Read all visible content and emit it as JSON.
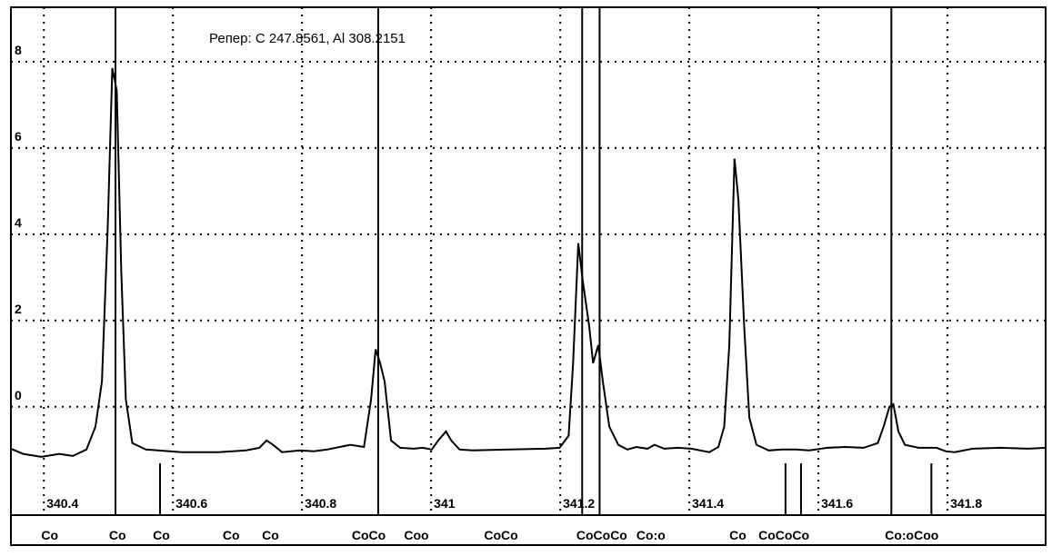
{
  "chart_data": {
    "type": "line",
    "annotation": "Репер: C  247.8561, Al  308.2151",
    "xlim": [
      340.349,
      341.952
    ],
    "ylim": [
      -2.51,
      9.26
    ],
    "xticks": [
      340.4,
      340.6,
      340.8,
      341,
      341.2,
      341.4,
      341.6,
      341.8
    ],
    "yticks": [
      0,
      2,
      4,
      6,
      8
    ],
    "grid": true,
    "x": [
      340.349,
      340.368,
      340.396,
      340.424,
      340.445,
      340.466,
      340.48,
      340.49,
      340.499,
      340.506,
      340.513,
      340.52,
      340.527,
      340.537,
      340.558,
      340.614,
      340.67,
      340.713,
      340.734,
      340.745,
      340.755,
      340.769,
      340.797,
      340.818,
      340.839,
      340.875,
      340.896,
      340.907,
      340.914,
      340.921,
      340.928,
      340.938,
      340.952,
      340.973,
      340.987,
      341.001,
      341.011,
      341.023,
      341.031,
      341.044,
      341.065,
      341.121,
      341.177,
      341.199,
      341.213,
      341.22,
      341.228,
      341.235,
      341.245,
      341.251,
      341.259,
      341.266,
      341.276,
      341.29,
      341.304,
      341.318,
      341.335,
      341.346,
      341.361,
      341.382,
      341.403,
      341.431,
      341.445,
      341.454,
      341.462,
      341.47,
      341.476,
      341.485,
      341.493,
      341.504,
      341.523,
      341.544,
      341.565,
      341.586,
      341.614,
      341.642,
      341.67,
      341.692,
      341.701,
      341.71,
      341.716,
      341.724,
      341.734,
      341.755,
      341.783,
      341.797,
      341.811,
      341.839,
      341.882,
      341.924,
      341.952
    ],
    "series": [
      {
        "color": "#000000",
        "values": [
          -0.97,
          -1.09,
          -1.16,
          -1.09,
          -1.14,
          -0.99,
          -0.46,
          0.59,
          4.17,
          7.85,
          7.33,
          3.12,
          0.17,
          -0.84,
          -0.99,
          -1.05,
          -1.05,
          -1.01,
          -0.95,
          -0.78,
          -0.88,
          -1.05,
          -1.01,
          -1.03,
          -0.99,
          -0.88,
          -0.93,
          0.17,
          1.33,
          1.01,
          0.59,
          -0.78,
          -0.95,
          -0.97,
          -0.95,
          -0.99,
          -0.78,
          -0.57,
          -0.78,
          -0.99,
          -1.01,
          -0.99,
          -0.97,
          -0.95,
          -0.67,
          1.01,
          3.79,
          2.91,
          1.85,
          1.01,
          1.43,
          0.59,
          -0.46,
          -0.88,
          -0.99,
          -0.93,
          -0.97,
          -0.88,
          -0.97,
          -0.95,
          -0.97,
          -1.05,
          -0.93,
          -0.46,
          1.43,
          5.75,
          4.8,
          1.85,
          -0.25,
          -0.88,
          -1.01,
          -0.99,
          -0.99,
          -1.01,
          -0.95,
          -0.93,
          -0.95,
          -0.84,
          -0.46,
          0,
          0.06,
          -0.57,
          -0.88,
          -0.95,
          -0.95,
          -1.03,
          -1.05,
          -0.97,
          -0.95,
          -0.97,
          -0.95
        ]
      }
    ],
    "reference_lines": [
      340.511,
      340.918,
      341.234,
      341.261,
      341.713
    ],
    "markers": [
      340.58,
      341.549,
      341.573,
      341.775
    ],
    "element_labels": [
      {
        "x": 340.396,
        "label": "Co"
      },
      {
        "x": 340.501,
        "label": "Co"
      },
      {
        "x": 340.569,
        "label": "Co"
      },
      {
        "x": 340.677,
        "label": "Co"
      },
      {
        "x": 340.738,
        "label": "Co"
      },
      {
        "x": 340.877,
        "label": "CoCo"
      },
      {
        "x": 340.958,
        "label": "Coo"
      },
      {
        "x": 341.082,
        "label": "CoCo"
      },
      {
        "x": 341.225,
        "label": "CoCoCo"
      },
      {
        "x": 341.318,
        "label": "Co:o"
      },
      {
        "x": 341.462,
        "label": "Co"
      },
      {
        "x": 341.507,
        "label": "CoCoCo"
      },
      {
        "x": 341.703,
        "label": "Co:oCoo"
      }
    ]
  }
}
